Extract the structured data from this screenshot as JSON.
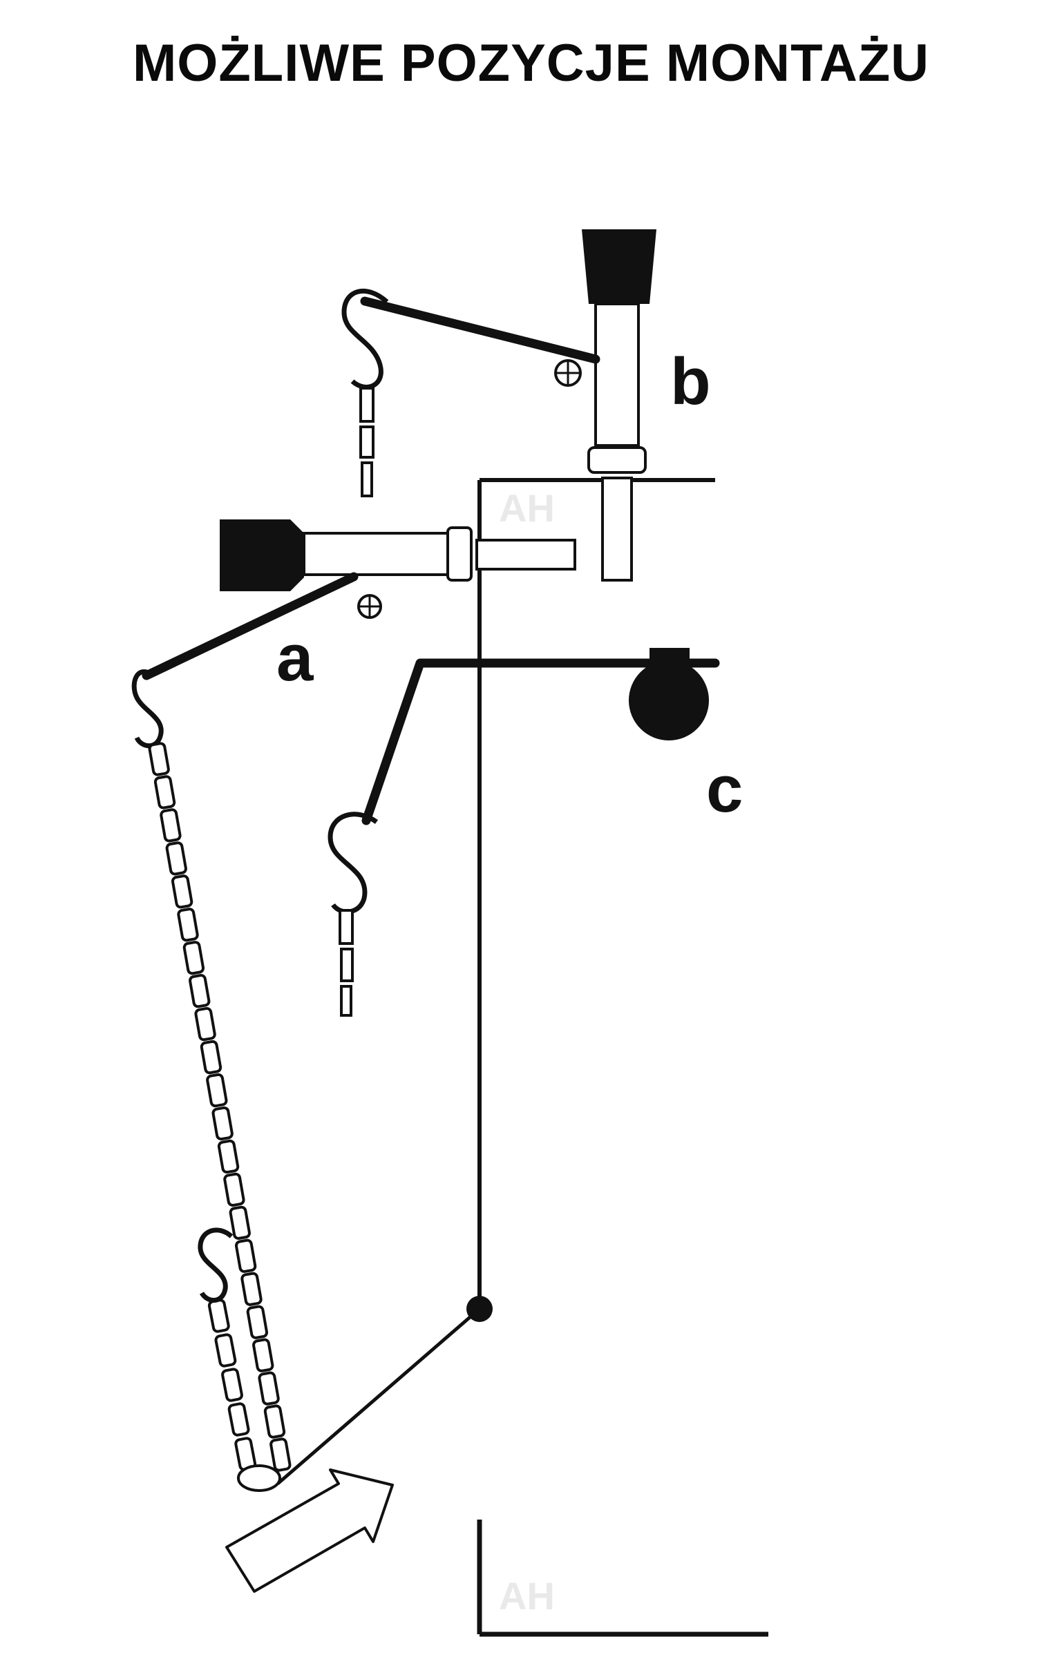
{
  "title": "MOŻLIWE POZYCJE MONTAŻU",
  "labels": {
    "a": "a",
    "b": "b",
    "c": "c"
  },
  "watermarks": [
    "AH",
    "AH"
  ],
  "colors": {
    "ink": "#111111",
    "background": "#ffffff",
    "watermark": "#e9e9e9"
  }
}
